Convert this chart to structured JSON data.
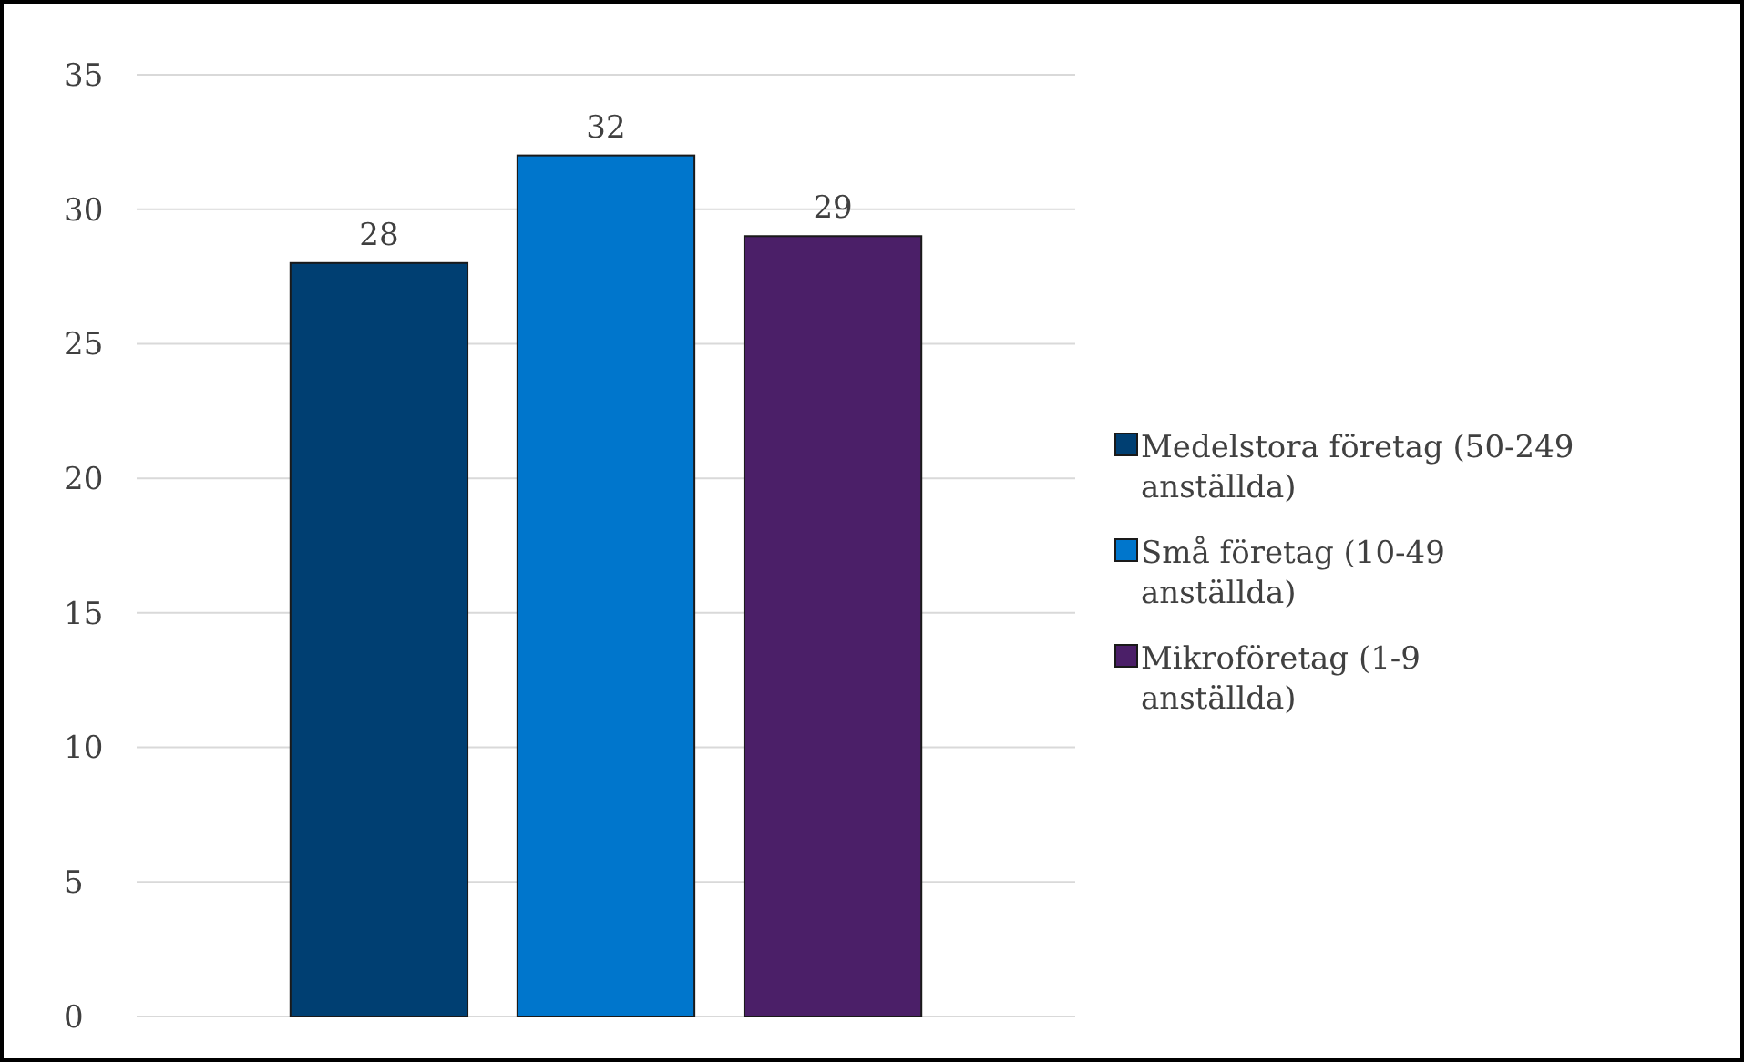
{
  "chart_data": {
    "type": "bar",
    "categories": [
      null
    ],
    "series": [
      {
        "name": "Medelstora företag (50-249 anställda)",
        "color": "#003f72",
        "values": [
          28
        ]
      },
      {
        "name": "Små företag (10-49 anställda)",
        "color": "#0076cc",
        "values": [
          32
        ]
      },
      {
        "name": "Mikroföretag (1-9 anställda)",
        "color": "#4b1f68",
        "values": [
          29
        ]
      }
    ],
    "ylim": [
      0,
      35
    ],
    "yticks": [
      0,
      5,
      10,
      15,
      20,
      25,
      30,
      35
    ],
    "grid": "y",
    "legend": "right",
    "data_labels": true
  }
}
